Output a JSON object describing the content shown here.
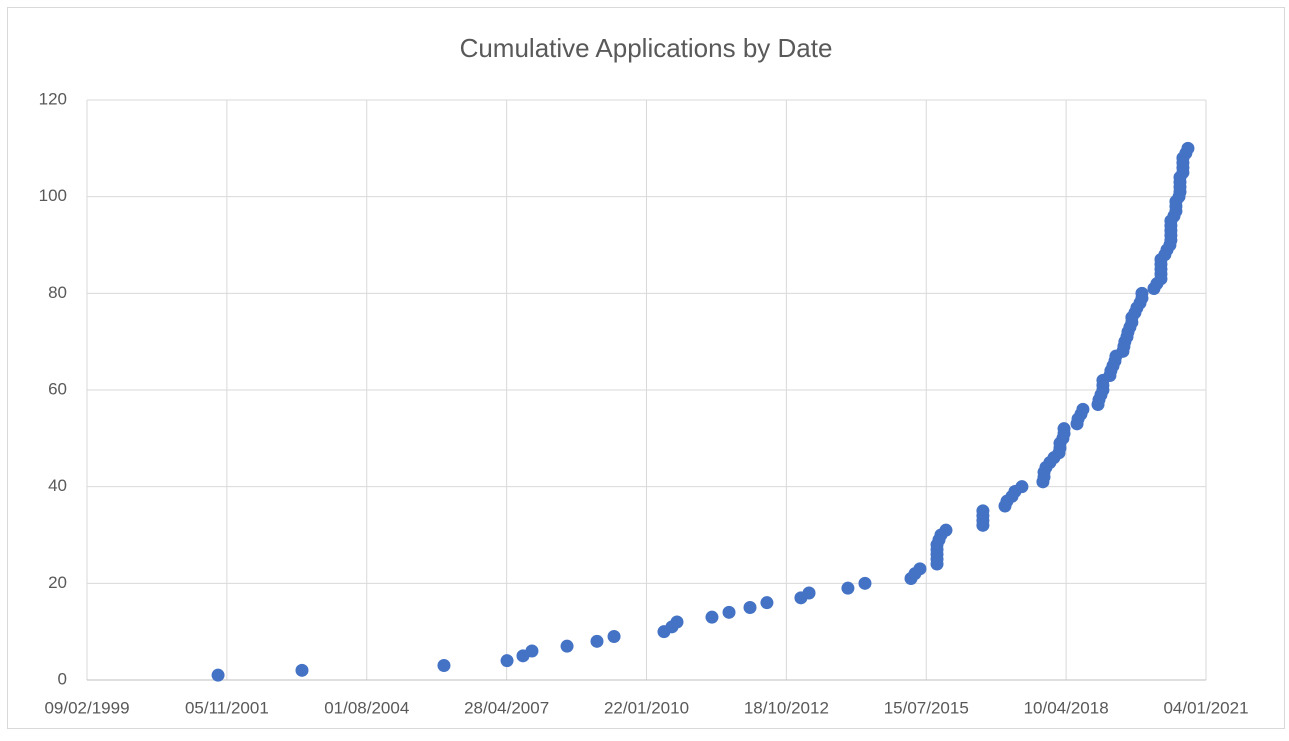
{
  "chart_data": {
    "type": "scatter",
    "title": "Cumulative Applications by Date",
    "series": [
      {
        "color": "#4472c4",
        "x": [
          37137,
          37737,
          38752,
          39203,
          39317,
          39381,
          39632,
          39846,
          39968,
          40325,
          40382,
          40418,
          40668,
          40790,
          40940,
          41061,
          41304,
          41362,
          41640,
          41762,
          42091,
          42119,
          42155,
          42277,
          42277,
          42277,
          42277,
          42277,
          42291,
          42305,
          42341,
          42605,
          42605,
          42605,
          42605,
          42763,
          42777,
          42813,
          42834,
          42884,
          43034,
          43042,
          43042,
          43056,
          43084,
          43113,
          43149,
          43156,
          43156,
          43177,
          43185,
          43185,
          43278,
          43285,
          43306,
          43320,
          43428,
          43435,
          43449,
          43463,
          43463,
          43463,
          43513,
          43520,
          43535,
          43549,
          43556,
          43606,
          43613,
          43620,
          43635,
          43642,
          43656,
          43670,
          43670,
          43692,
          43706,
          43728,
          43742,
          43742,
          43828,
          43849,
          43878,
          43878,
          43878,
          43878,
          43878,
          43906,
          43921,
          43942,
          43949,
          43949,
          43949,
          43949,
          43949,
          43971,
          43985,
          43985,
          43985,
          44007,
          44014,
          44014,
          44014,
          44014,
          44035,
          44035,
          44035,
          44035,
          44056,
          44071
        ],
        "values": [
          1,
          2,
          3,
          4,
          5,
          6,
          7,
          8,
          9,
          10,
          11,
          12,
          13,
          14,
          15,
          16,
          17,
          18,
          19,
          20,
          21,
          22,
          23,
          24,
          25,
          26,
          27,
          28,
          29,
          30,
          31,
          32,
          33,
          34,
          35,
          36,
          37,
          38,
          39,
          40,
          41,
          42,
          43,
          44,
          45,
          46,
          47,
          48,
          49,
          50,
          51,
          52,
          53,
          54,
          55,
          56,
          57,
          58,
          59,
          60,
          61,
          62,
          63,
          64,
          65,
          66,
          67,
          68,
          69,
          70,
          71,
          72,
          73,
          74,
          75,
          76,
          77,
          78,
          79,
          80,
          81,
          82,
          83,
          84,
          85,
          86,
          87,
          88,
          89,
          90,
          91,
          92,
          93,
          94,
          95,
          96,
          97,
          98,
          99,
          100,
          101,
          102,
          103,
          104,
          105,
          106,
          107,
          108,
          109,
          110
        ]
      }
    ],
    "xlim": [
      36200,
      44200
    ],
    "xticks": [
      {
        "value": 36200,
        "label": "09/02/1999"
      },
      {
        "value": 37200,
        "label": "05/11/2001"
      },
      {
        "value": 38200,
        "label": "01/08/2004"
      },
      {
        "value": 39200,
        "label": "28/04/2007"
      },
      {
        "value": 40200,
        "label": "22/01/2010"
      },
      {
        "value": 41200,
        "label": "18/10/2012"
      },
      {
        "value": 42200,
        "label": "15/07/2015"
      },
      {
        "value": 43200,
        "label": "10/04/2018"
      },
      {
        "value": 44200,
        "label": "04/01/2021"
      }
    ],
    "ylim": [
      0,
      120
    ],
    "yticks": [
      0,
      20,
      40,
      60,
      80,
      100,
      120
    ],
    "grid": true
  }
}
